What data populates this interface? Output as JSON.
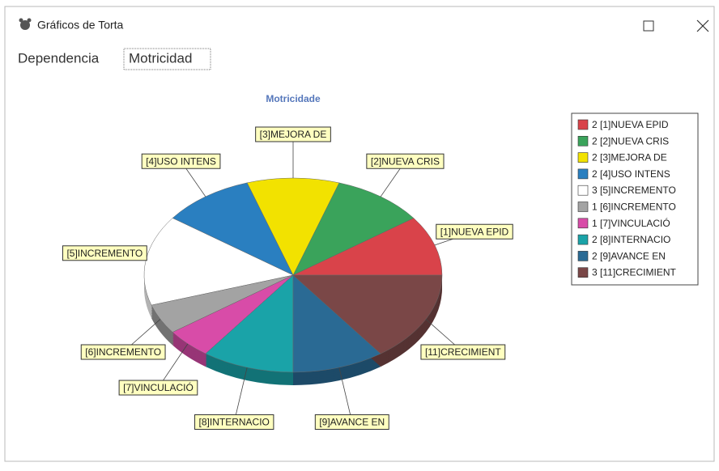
{
  "window": {
    "title": "Gráficos de Torta",
    "field_label": "Dependencia",
    "field_value": "Motricidad"
  },
  "chart_data": {
    "type": "pie",
    "title": "Motricidade",
    "categories": [
      "[1]NUEVA EPID",
      "[2]NUEVA CRIS",
      "[3]MEJORA DE",
      "[4]USO INTENS",
      "[5]INCREMENTO",
      "[6]INCREMENTO",
      "[7]VINCULACIÓ",
      "[8]INTERNACIO",
      "[9]AVANCE EN",
      "[11]CRECIMIENT"
    ],
    "values": [
      2,
      2,
      2,
      2,
      3,
      1,
      1,
      2,
      2,
      3
    ],
    "colors": [
      "#d9434a",
      "#3aa35b",
      "#f2e200",
      "#2a7fc0",
      "#ffffff",
      "#a3a3a3",
      "#d84ca8",
      "#1aa3a8",
      "#2a6a94",
      "#7a4747"
    ],
    "legend": "right"
  }
}
